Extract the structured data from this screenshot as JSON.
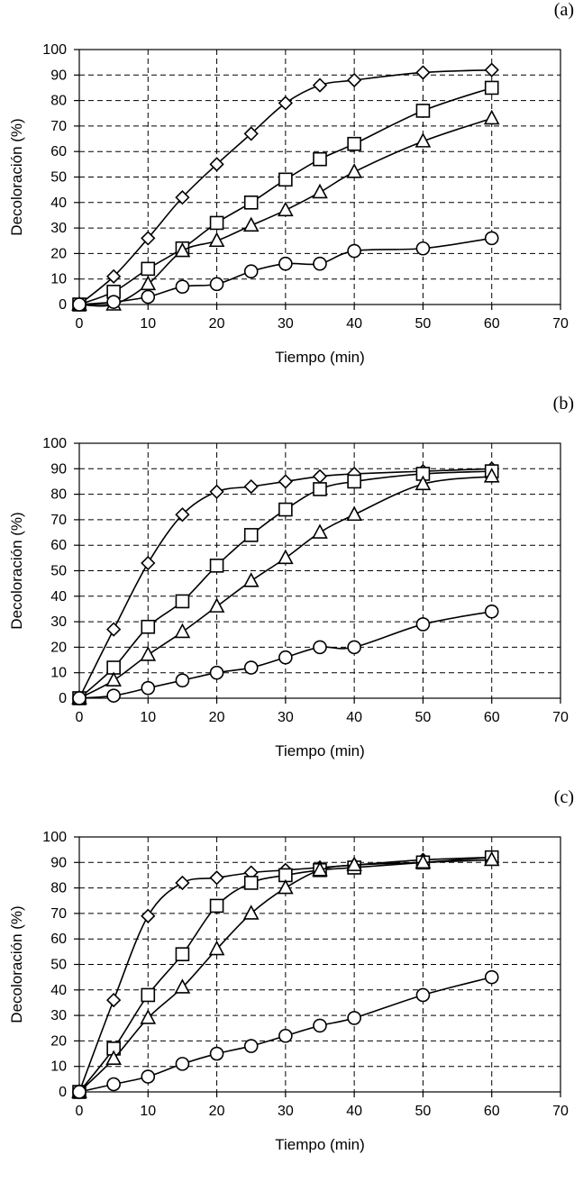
{
  "chart_data": [
    {
      "type": "line",
      "panel_label": "(a)",
      "xlabel": "Tiempo (min)",
      "ylabel": "Decoloración (%)",
      "xlim": [
        0,
        70
      ],
      "ylim": [
        0,
        100
      ],
      "xticks": [
        0,
        10,
        20,
        30,
        40,
        50,
        60,
        70
      ],
      "yticks": [
        0,
        10,
        20,
        30,
        40,
        50,
        60,
        70,
        80,
        90,
        100
      ],
      "grid": true,
      "legend": "none",
      "x": [
        0,
        5,
        10,
        15,
        20,
        25,
        30,
        35,
        40,
        50,
        60
      ],
      "series": [
        {
          "marker": "diamond",
          "values": [
            0,
            11,
            26,
            42,
            55,
            67,
            79,
            86,
            88,
            91,
            92
          ]
        },
        {
          "marker": "square",
          "values": [
            0,
            5,
            14,
            22,
            32,
            40,
            49,
            57,
            63,
            76,
            85
          ]
        },
        {
          "marker": "triangle",
          "values": [
            0,
            0,
            8,
            21,
            25,
            31,
            37,
            44,
            52,
            64,
            73
          ]
        },
        {
          "marker": "circle",
          "values": [
            0,
            1,
            3,
            7,
            8,
            13,
            16,
            16,
            21,
            22,
            26
          ]
        }
      ]
    },
    {
      "type": "line",
      "panel_label": "(b)",
      "xlabel": "Tiempo (min)",
      "ylabel": "Decoloración (%)",
      "xlim": [
        0,
        70
      ],
      "ylim": [
        0,
        100
      ],
      "xticks": [
        0,
        10,
        20,
        30,
        40,
        50,
        60,
        70
      ],
      "yticks": [
        0,
        10,
        20,
        30,
        40,
        50,
        60,
        70,
        80,
        90,
        100
      ],
      "grid": true,
      "legend": "none",
      "x": [
        0,
        5,
        10,
        15,
        20,
        25,
        30,
        35,
        40,
        50,
        60
      ],
      "series": [
        {
          "marker": "diamond",
          "values": [
            0,
            27,
            53,
            72,
            81,
            83,
            85,
            87,
            88,
            89,
            90
          ]
        },
        {
          "marker": "square",
          "values": [
            0,
            12,
            28,
            38,
            52,
            64,
            74,
            82,
            85,
            88,
            89
          ]
        },
        {
          "marker": "triangle",
          "values": [
            0,
            7,
            17,
            26,
            36,
            46,
            55,
            65,
            72,
            84,
            87
          ]
        },
        {
          "marker": "circle",
          "values": [
            0,
            1,
            4,
            7,
            10,
            12,
            16,
            20,
            20,
            29,
            34
          ]
        }
      ]
    },
    {
      "type": "line",
      "panel_label": "(c)",
      "xlabel": "Tiempo (min)",
      "ylabel": "Decoloración (%)",
      "xlim": [
        0,
        70
      ],
      "ylim": [
        0,
        100
      ],
      "xticks": [
        0,
        10,
        20,
        30,
        40,
        50,
        60,
        70
      ],
      "yticks": [
        0,
        10,
        20,
        30,
        40,
        50,
        60,
        70,
        80,
        90,
        100
      ],
      "grid": true,
      "legend": "none",
      "x": [
        0,
        5,
        10,
        15,
        20,
        25,
        30,
        35,
        40,
        50,
        60
      ],
      "series": [
        {
          "marker": "diamond",
          "values": [
            0,
            36,
            69,
            82,
            84,
            86,
            87,
            88,
            89,
            91,
            92
          ]
        },
        {
          "marker": "square",
          "values": [
            0,
            17,
            38,
            54,
            73,
            82,
            85,
            87,
            88,
            90,
            92
          ]
        },
        {
          "marker": "triangle",
          "values": [
            0,
            13,
            29,
            41,
            56,
            70,
            80,
            87,
            89,
            90,
            91
          ]
        },
        {
          "marker": "circle",
          "values": [
            0,
            3,
            6,
            11,
            15,
            18,
            22,
            26,
            29,
            38,
            45
          ]
        }
      ]
    }
  ]
}
